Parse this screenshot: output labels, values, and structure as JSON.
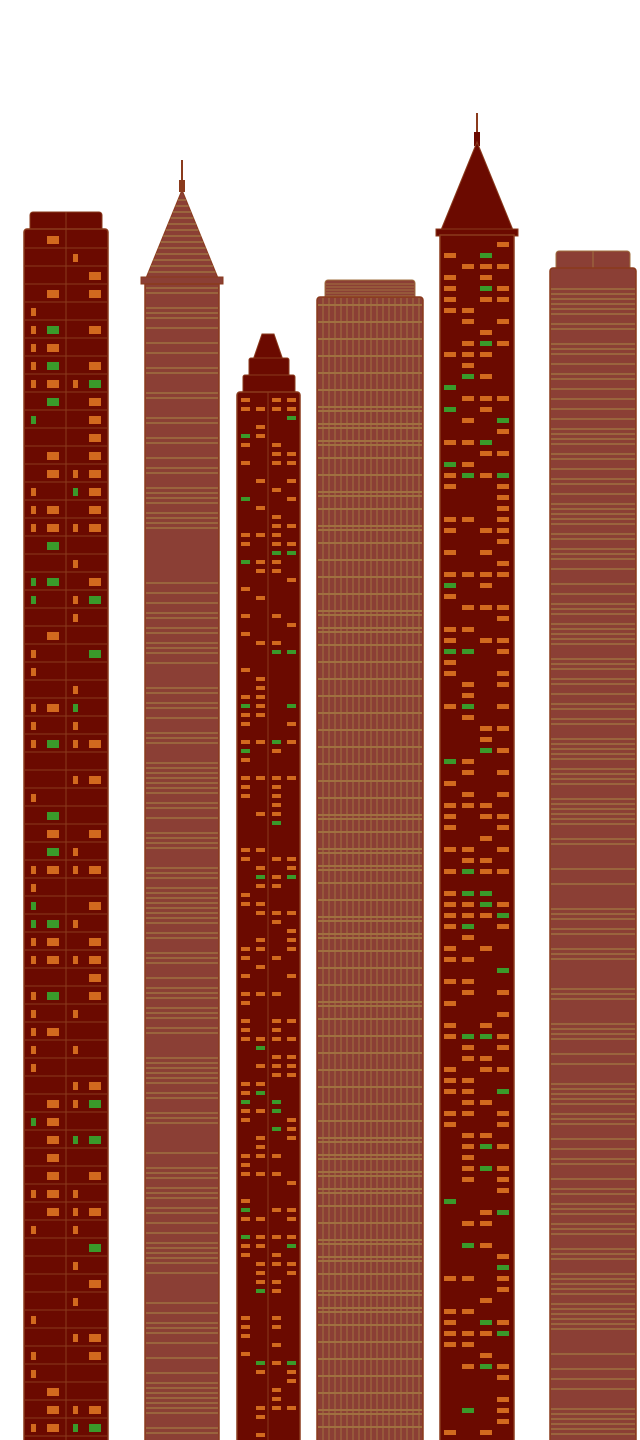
{
  "scene": {
    "background": "#ffffff",
    "colors": {
      "dark_red": "#6b0a00",
      "outline_brown": "#8a3a1c",
      "window_orange": "#d2691e",
      "window_green": "#3a9a2a",
      "stripe_tan": "#a07040",
      "body_brick": "#8b3f35"
    },
    "buildings": [
      {
        "name": "left-dark-tower",
        "style": "dark-windows",
        "roof": "flat-step"
      },
      {
        "name": "spire-tower",
        "style": "striped",
        "roof": "spire"
      },
      {
        "name": "stepped-center-tower",
        "style": "dark-windows-dense",
        "roof": "stepped"
      },
      {
        "name": "grid-tower",
        "style": "grid",
        "roof": "flat-step"
      },
      {
        "name": "pointed-tower",
        "style": "dark-windows",
        "roof": "pointed"
      },
      {
        "name": "right-striped-tower",
        "style": "striped",
        "roof": "flat-step"
      }
    ]
  }
}
